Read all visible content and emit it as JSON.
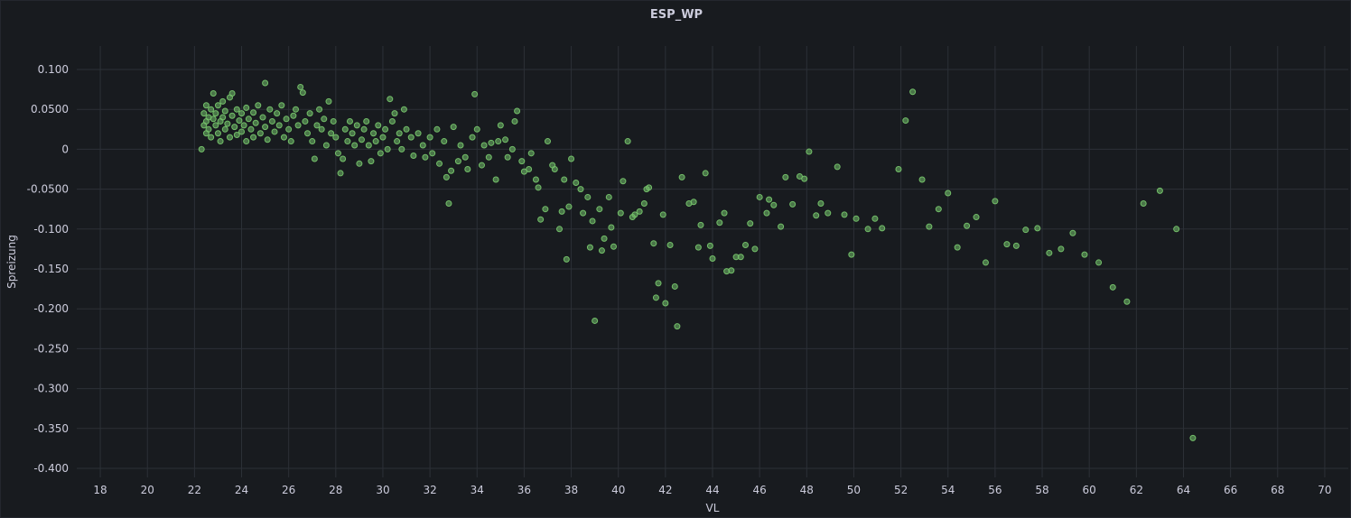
{
  "panel": {
    "title": "ESP_WP"
  },
  "chart_data": {
    "type": "scatter",
    "title": "ESP_WP",
    "xlabel": "VL",
    "ylabel": "Spreizung",
    "xlim": [
      17,
      71
    ],
    "ylim": [
      -0.4,
      0.1
    ],
    "x_ticks": [
      18,
      20,
      22,
      24,
      26,
      28,
      30,
      32,
      34,
      36,
      38,
      40,
      42,
      44,
      46,
      48,
      50,
      52,
      54,
      56,
      58,
      60,
      62,
      64,
      66,
      68,
      70
    ],
    "y_ticks": [
      0.1,
      0.05,
      0,
      -0.05,
      -0.1,
      -0.15,
      -0.2,
      -0.25,
      -0.3,
      -0.35,
      -0.4
    ],
    "y_tick_labels": [
      "0.100",
      "0.0500",
      "0",
      "-0.0500",
      "-0.100",
      "-0.150",
      "-0.200",
      "-0.250",
      "-0.300",
      "-0.350",
      "-0.400"
    ],
    "grid": true,
    "point_color": "#73bf69",
    "series": [
      {
        "points": [
          [
            22.3,
            0.0
          ],
          [
            22.4,
            0.045
          ],
          [
            22.4,
            0.03
          ],
          [
            22.5,
            0.02
          ],
          [
            22.5,
            0.055
          ],
          [
            22.5,
            0.035
          ],
          [
            22.6,
            0.04
          ],
          [
            22.6,
            0.025
          ],
          [
            22.7,
            0.05
          ],
          [
            22.7,
            0.015
          ],
          [
            22.8,
            0.038
          ],
          [
            22.8,
            0.07
          ],
          [
            22.9,
            0.03
          ],
          [
            22.9,
            0.045
          ],
          [
            23.0,
            0.02
          ],
          [
            23.0,
            0.055
          ],
          [
            23.1,
            0.035
          ],
          [
            23.1,
            0.01
          ],
          [
            23.2,
            0.04
          ],
          [
            23.2,
            0.06
          ],
          [
            23.3,
            0.025
          ],
          [
            23.3,
            0.048
          ],
          [
            23.4,
            0.032
          ],
          [
            23.5,
            0.065
          ],
          [
            23.5,
            0.015
          ],
          [
            23.6,
            0.042
          ],
          [
            23.6,
            0.07
          ],
          [
            23.7,
            0.028
          ],
          [
            23.8,
            0.05
          ],
          [
            23.8,
            0.018
          ],
          [
            23.9,
            0.036
          ],
          [
            24.0,
            0.045
          ],
          [
            24.0,
            0.022
          ],
          [
            24.1,
            0.03
          ],
          [
            24.2,
            0.052
          ],
          [
            24.2,
            0.01
          ],
          [
            24.3,
            0.038
          ],
          [
            24.4,
            0.025
          ],
          [
            24.5,
            0.046
          ],
          [
            24.5,
            0.015
          ],
          [
            24.6,
            0.033
          ],
          [
            24.7,
            0.055
          ],
          [
            24.8,
            0.02
          ],
          [
            24.9,
            0.04
          ],
          [
            25.0,
            0.083
          ],
          [
            25.0,
            0.028
          ],
          [
            25.1,
            0.012
          ],
          [
            25.2,
            0.05
          ],
          [
            25.3,
            0.035
          ],
          [
            25.4,
            0.022
          ],
          [
            25.5,
            0.045
          ],
          [
            25.6,
            0.03
          ],
          [
            25.7,
            0.055
          ],
          [
            25.8,
            0.015
          ],
          [
            25.9,
            0.038
          ],
          [
            26.0,
            0.025
          ],
          [
            26.1,
            0.01
          ],
          [
            26.2,
            0.042
          ],
          [
            26.3,
            0.05
          ],
          [
            26.4,
            0.03
          ],
          [
            26.5,
            0.078
          ],
          [
            26.6,
            0.071
          ],
          [
            26.7,
            0.035
          ],
          [
            26.8,
            0.02
          ],
          [
            26.9,
            0.045
          ],
          [
            27.0,
            0.01
          ],
          [
            27.1,
            -0.012
          ],
          [
            27.2,
            0.03
          ],
          [
            27.3,
            0.05
          ],
          [
            27.4,
            0.025
          ],
          [
            27.5,
            0.038
          ],
          [
            27.6,
            0.005
          ],
          [
            27.7,
            0.06
          ],
          [
            27.8,
            0.02
          ],
          [
            27.9,
            0.035
          ],
          [
            28.0,
            0.015
          ],
          [
            28.1,
            -0.005
          ],
          [
            28.2,
            -0.03
          ],
          [
            28.3,
            -0.012
          ],
          [
            28.4,
            0.025
          ],
          [
            28.5,
            0.01
          ],
          [
            28.6,
            0.035
          ],
          [
            28.7,
            0.02
          ],
          [
            28.8,
            0.005
          ],
          [
            28.9,
            0.03
          ],
          [
            29.0,
            -0.018
          ],
          [
            29.1,
            0.012
          ],
          [
            29.2,
            0.025
          ],
          [
            29.3,
            0.035
          ],
          [
            29.4,
            0.005
          ],
          [
            29.5,
            -0.015
          ],
          [
            29.6,
            0.02
          ],
          [
            29.7,
            0.01
          ],
          [
            29.8,
            0.03
          ],
          [
            29.9,
            -0.005
          ],
          [
            30.0,
            0.015
          ],
          [
            30.1,
            0.025
          ],
          [
            30.2,
            0.0
          ],
          [
            30.3,
            0.063
          ],
          [
            30.4,
            0.035
          ],
          [
            30.5,
            0.045
          ],
          [
            30.6,
            0.01
          ],
          [
            30.7,
            0.02
          ],
          [
            30.8,
            0.0
          ],
          [
            30.9,
            0.05
          ],
          [
            31.0,
            0.025
          ],
          [
            31.2,
            0.015
          ],
          [
            31.3,
            -0.008
          ],
          [
            31.5,
            0.02
          ],
          [
            31.7,
            0.005
          ],
          [
            31.8,
            -0.01
          ],
          [
            32.0,
            0.015
          ],
          [
            32.1,
            -0.005
          ],
          [
            32.3,
            0.025
          ],
          [
            32.4,
            -0.018
          ],
          [
            32.6,
            0.01
          ],
          [
            32.7,
            -0.035
          ],
          [
            32.8,
            -0.068
          ],
          [
            32.9,
            -0.027
          ],
          [
            33.0,
            0.028
          ],
          [
            33.2,
            -0.015
          ],
          [
            33.3,
            0.005
          ],
          [
            33.5,
            -0.01
          ],
          [
            33.6,
            -0.025
          ],
          [
            33.8,
            0.015
          ],
          [
            33.9,
            0.069
          ],
          [
            34.0,
            0.025
          ],
          [
            34.2,
            -0.02
          ],
          [
            34.3,
            0.005
          ],
          [
            34.5,
            -0.01
          ],
          [
            34.6,
            0.008
          ],
          [
            34.8,
            -0.038
          ],
          [
            34.9,
            0.01
          ],
          [
            35.0,
            0.03
          ],
          [
            35.2,
            0.012
          ],
          [
            35.3,
            -0.01
          ],
          [
            35.5,
            0.0
          ],
          [
            35.6,
            0.035
          ],
          [
            35.7,
            0.048
          ],
          [
            35.9,
            -0.015
          ],
          [
            36.0,
            -0.028
          ],
          [
            36.2,
            -0.025
          ],
          [
            36.3,
            -0.005
          ],
          [
            36.5,
            -0.038
          ],
          [
            36.6,
            -0.048
          ],
          [
            36.7,
            -0.088
          ],
          [
            36.9,
            -0.075
          ],
          [
            37.0,
            0.01
          ],
          [
            37.2,
            -0.02
          ],
          [
            37.3,
            -0.025
          ],
          [
            37.5,
            -0.1
          ],
          [
            37.6,
            -0.078
          ],
          [
            37.7,
            -0.038
          ],
          [
            37.8,
            -0.138
          ],
          [
            37.9,
            -0.072
          ],
          [
            38.0,
            -0.012
          ],
          [
            38.2,
            -0.042
          ],
          [
            38.4,
            -0.05
          ],
          [
            38.5,
            -0.08
          ],
          [
            38.7,
            -0.06
          ],
          [
            38.8,
            -0.123
          ],
          [
            38.9,
            -0.09
          ],
          [
            39.0,
            -0.215
          ],
          [
            39.2,
            -0.075
          ],
          [
            39.3,
            -0.127
          ],
          [
            39.4,
            -0.112
          ],
          [
            39.6,
            -0.06
          ],
          [
            39.7,
            -0.098
          ],
          [
            39.8,
            -0.122
          ],
          [
            40.1,
            -0.08
          ],
          [
            40.2,
            -0.04
          ],
          [
            40.4,
            0.01
          ],
          [
            40.6,
            -0.085
          ],
          [
            40.7,
            -0.082
          ],
          [
            40.9,
            -0.078
          ],
          [
            41.1,
            -0.068
          ],
          [
            41.2,
            -0.05
          ],
          [
            41.3,
            -0.048
          ],
          [
            41.5,
            -0.118
          ],
          [
            41.6,
            -0.186
          ],
          [
            41.7,
            -0.168
          ],
          [
            41.9,
            -0.082
          ],
          [
            42.0,
            -0.193
          ],
          [
            42.2,
            -0.12
          ],
          [
            42.4,
            -0.172
          ],
          [
            42.5,
            -0.222
          ],
          [
            42.7,
            -0.035
          ],
          [
            43.0,
            -0.068
          ],
          [
            43.2,
            -0.066
          ],
          [
            43.4,
            -0.123
          ],
          [
            43.5,
            -0.095
          ],
          [
            43.7,
            -0.03
          ],
          [
            43.9,
            -0.121
          ],
          [
            44.0,
            -0.137
          ],
          [
            44.3,
            -0.092
          ],
          [
            44.5,
            -0.08
          ],
          [
            44.6,
            -0.153
          ],
          [
            44.8,
            -0.152
          ],
          [
            45.0,
            -0.135
          ],
          [
            45.2,
            -0.135
          ],
          [
            45.4,
            -0.12
          ],
          [
            45.6,
            -0.093
          ],
          [
            45.8,
            -0.125
          ],
          [
            46.0,
            -0.06
          ],
          [
            46.3,
            -0.08
          ],
          [
            46.4,
            -0.063
          ],
          [
            46.6,
            -0.07
          ],
          [
            46.9,
            -0.097
          ],
          [
            47.1,
            -0.035
          ],
          [
            47.4,
            -0.069
          ],
          [
            47.7,
            -0.034
          ],
          [
            47.9,
            -0.037
          ],
          [
            48.1,
            -0.003
          ],
          [
            48.4,
            -0.083
          ],
          [
            48.6,
            -0.068
          ],
          [
            48.9,
            -0.08
          ],
          [
            49.3,
            -0.022
          ],
          [
            49.6,
            -0.082
          ],
          [
            49.9,
            -0.132
          ],
          [
            50.1,
            -0.087
          ],
          [
            50.6,
            -0.1
          ],
          [
            50.9,
            -0.087
          ],
          [
            51.2,
            -0.099
          ],
          [
            51.9,
            -0.025
          ],
          [
            52.2,
            0.036
          ],
          [
            52.5,
            0.072
          ],
          [
            52.9,
            -0.038
          ],
          [
            53.2,
            -0.097
          ],
          [
            53.6,
            -0.075
          ],
          [
            54.0,
            -0.055
          ],
          [
            54.4,
            -0.123
          ],
          [
            54.8,
            -0.096
          ],
          [
            55.2,
            -0.085
          ],
          [
            55.6,
            -0.142
          ],
          [
            56.0,
            -0.065
          ],
          [
            56.5,
            -0.119
          ],
          [
            56.9,
            -0.121
          ],
          [
            57.3,
            -0.101
          ],
          [
            57.8,
            -0.099
          ],
          [
            58.3,
            -0.13
          ],
          [
            58.8,
            -0.125
          ],
          [
            59.3,
            -0.105
          ],
          [
            59.8,
            -0.132
          ],
          [
            60.4,
            -0.142
          ],
          [
            61.0,
            -0.173
          ],
          [
            61.6,
            -0.191
          ],
          [
            62.3,
            -0.068
          ],
          [
            63.0,
            -0.052
          ],
          [
            63.7,
            -0.1
          ],
          [
            64.4,
            -0.362
          ]
        ]
      }
    ]
  }
}
